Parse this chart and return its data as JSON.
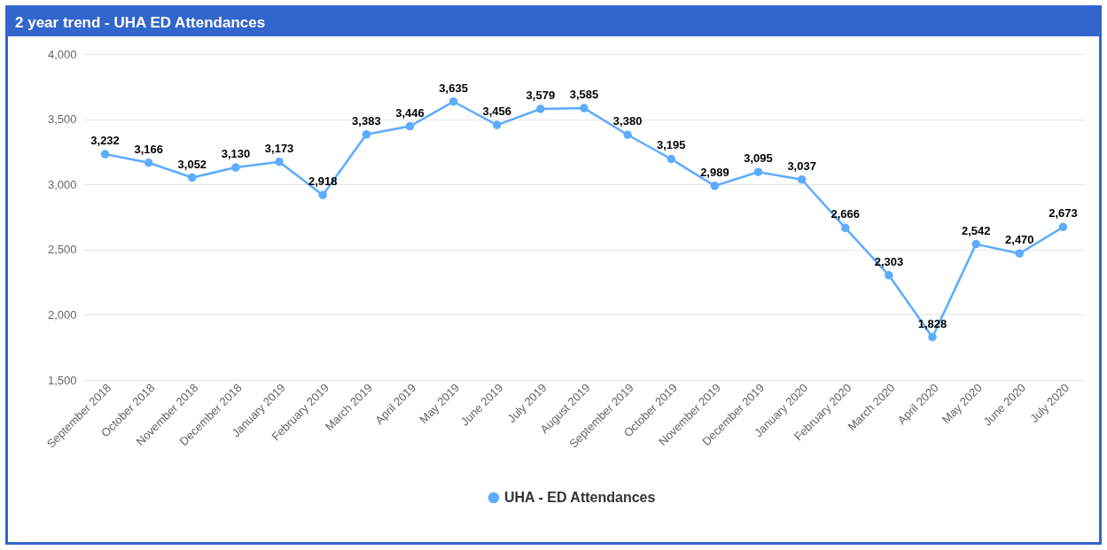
{
  "chart_data": {
    "type": "line",
    "title": "2 year trend - UHA ED Attendances",
    "categories": [
      "September 2018",
      "October 2018",
      "November 2018",
      "December 2018",
      "January 2019",
      "February 2019",
      "March 2019",
      "April 2019",
      "May 2019",
      "June 2019",
      "July 2019",
      "August 2019",
      "September 2019",
      "October 2019",
      "November 2019",
      "December 2019",
      "January 2020",
      "February 2020",
      "March 2020",
      "April 2020",
      "May 2020",
      "June 2020",
      "July 2020"
    ],
    "series": [
      {
        "name": "UHA - ED Attendances",
        "color": "#5cacff",
        "values": [
          3232,
          3166,
          3052,
          3130,
          3173,
          2918,
          3383,
          3446,
          3635,
          3456,
          3579,
          3585,
          3380,
          3195,
          2989,
          3095,
          3037,
          2666,
          2303,
          1828,
          2542,
          2470,
          2673
        ]
      }
    ],
    "value_labels": [
      "3,232",
      "3,166",
      "3,052",
      "3,130",
      "3,173",
      "2,918",
      "3,383",
      "3,446",
      "3,635",
      "3,456",
      "3,579",
      "3,585",
      "3,380",
      "3,195",
      "2,989",
      "3,095",
      "3,037",
      "2,666",
      "2,303",
      "1,828",
      "2,542",
      "2,470",
      "2,673"
    ],
    "ylim": [
      1500,
      4000
    ],
    "yticks": [
      {
        "value": 1500,
        "label": "1,500"
      },
      {
        "value": 2000,
        "label": "2,000"
      },
      {
        "value": 2500,
        "label": "2,500"
      },
      {
        "value": 3000,
        "label": "3,000"
      },
      {
        "value": 3500,
        "label": "3,500"
      },
      {
        "value": 4000,
        "label": "4,000"
      }
    ],
    "grid": "y",
    "legend": "bottom",
    "marker": "circle"
  }
}
